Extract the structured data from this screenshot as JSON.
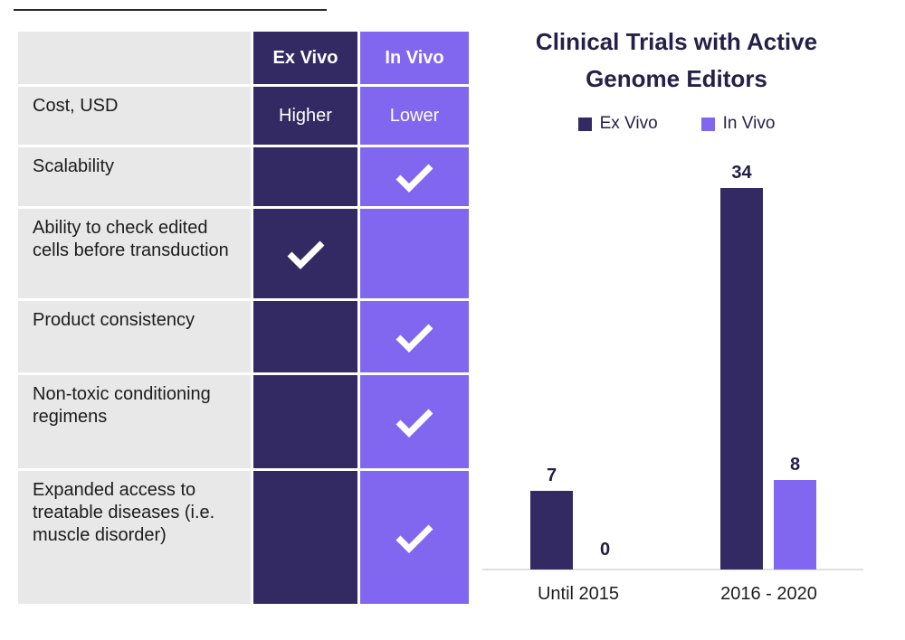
{
  "colors": {
    "ex_vivo": "#332A63",
    "in_vivo": "#8167F0",
    "row_label_bg": "#E8E8E8",
    "row_label_text": "#1C1C1C",
    "axis_line": "#E0E0E0",
    "title_text": "#252048",
    "value_label_text": "#221D47",
    "check_mark": "#FFFFFF"
  },
  "table": {
    "header": {
      "ex_vivo": "Ex Vivo",
      "in_vivo": "In Vivo"
    },
    "rows": [
      {
        "label": "Cost, USD",
        "ex": "Higher",
        "in": "Lower"
      },
      {
        "label": "Scalability",
        "ex": "",
        "in": "check"
      },
      {
        "label": "Ability to check edited cells before transduction",
        "ex": "check",
        "in": ""
      },
      {
        "label": "Product consistency",
        "ex": "",
        "in": "check"
      },
      {
        "label": "Non-toxic conditioning regimens",
        "ex": "",
        "in": "check"
      },
      {
        "label": "Expanded access to treatable diseases (i.e. muscle disorder)",
        "ex": "",
        "in": "check"
      }
    ]
  },
  "chart_data": {
    "type": "bar",
    "title": "Clinical Trials with Active Genome Editors",
    "title_lines": [
      "Clinical Trials with Active",
      "Genome Editors"
    ],
    "categories": [
      "Until 2015",
      "2016 - 2020"
    ],
    "series": [
      {
        "name": "Ex Vivo",
        "color": "#332A63",
        "values": [
          7,
          34
        ]
      },
      {
        "name": "In Vivo",
        "color": "#8167F0",
        "values": [
          0,
          8
        ]
      }
    ],
    "ylim": [
      0,
      34
    ],
    "grid": false,
    "legend_position": "top",
    "data_labels": true,
    "xlabel": "",
    "ylabel": ""
  }
}
